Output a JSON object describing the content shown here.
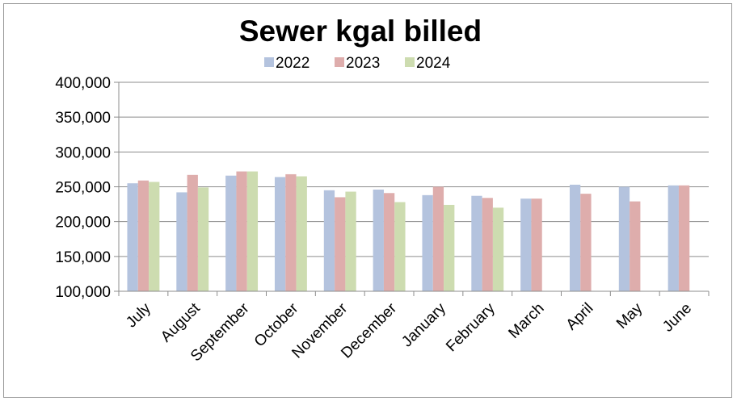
{
  "chart_data": {
    "type": "bar",
    "title": "Sewer kgal billed",
    "xlabel": "",
    "ylabel": "",
    "ylim": [
      100000,
      400000
    ],
    "yticks": [
      "100,000",
      "150,000",
      "200,000",
      "250,000",
      "300,000",
      "350,000",
      "400,000"
    ],
    "ytick_values": [
      100000,
      150000,
      200000,
      250000,
      300000,
      350000,
      400000
    ],
    "grid": true,
    "legend_position": "top",
    "categories": [
      "July",
      "August",
      "September",
      "October",
      "November",
      "December",
      "January",
      "February",
      "March",
      "April",
      "May",
      "June"
    ],
    "series": [
      {
        "name": "2022",
        "color": "#b4c3de",
        "values": [
          255000,
          242000,
          266000,
          264000,
          245000,
          246000,
          238000,
          237000,
          233000,
          253000,
          250000,
          252000
        ]
      },
      {
        "name": "2023",
        "color": "#deadac",
        "values": [
          259000,
          267000,
          272000,
          268000,
          235000,
          241000,
          250000,
          234000,
          233000,
          240000,
          229000,
          252000
        ]
      },
      {
        "name": "2024",
        "color": "#cddcb0",
        "values": [
          257000,
          249000,
          272000,
          265000,
          243000,
          228000,
          224000,
          220000,
          100000,
          100000,
          100000,
          100000
        ]
      }
    ]
  }
}
